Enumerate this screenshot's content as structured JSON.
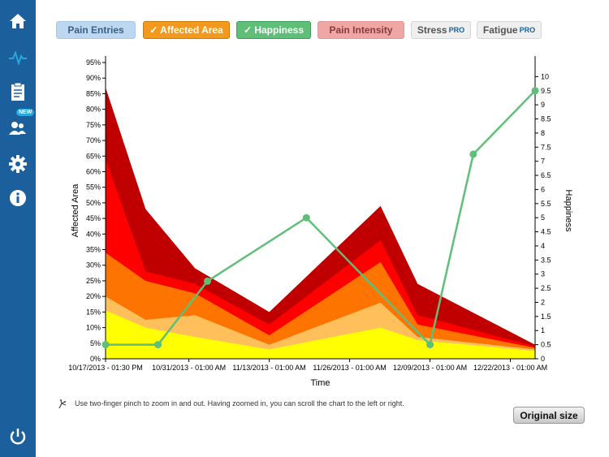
{
  "sidebar": {
    "items": [
      {
        "name": "home-icon"
      },
      {
        "name": "pulse-icon"
      },
      {
        "name": "clipboard-icon"
      },
      {
        "name": "people-icon",
        "badge": "NEW"
      },
      {
        "name": "gear-icon"
      },
      {
        "name": "info-icon"
      },
      {
        "name": "power-icon"
      }
    ]
  },
  "tabs": [
    {
      "label": "Pain Entries",
      "pro": "",
      "bg": "#bcd7ef",
      "border": "#a9c8e6",
      "color": "#3a5f88"
    },
    {
      "label": "✓ Affected Area",
      "pro": "",
      "bg": "#f39a1e",
      "border": "#c97a10",
      "color": "#ffffff"
    },
    {
      "label": "✓ Happiness",
      "pro": "",
      "bg": "#5fbf78",
      "border": "#3f9f58",
      "color": "#ffffff"
    },
    {
      "label": "Pain Intensity",
      "pro": "",
      "bg": "#eea7a5",
      "border": "#e49896",
      "color": "#8a3a3a"
    },
    {
      "label": "Stress",
      "pro": "PRO",
      "bg": "#efefef",
      "border": "#d6d6d6",
      "color": "#555555"
    },
    {
      "label": "Fatigue",
      "pro": "PRO",
      "bg": "#efefef",
      "border": "#d6d6d6",
      "color": "#555555"
    }
  ],
  "hint": {
    "text": "Use two-finger pinch to zoom in and out. Having zoomed in, you can scroll the chart to the left or right."
  },
  "original_size_label": "Original size",
  "chart_data": {
    "type": "area",
    "xlabel": "Time",
    "ylabel_left": "Affected Area",
    "ylabel_right": "Happiness",
    "x_ticks": [
      "10/17/2013 - 01:30 PM",
      "10/31/2013 - 01:00 AM",
      "11/13/2013 - 01:00 AM",
      "11/26/2013 - 01:00 AM",
      "12/09/2013 - 01:00 AM",
      "12/22/2013 - 01:00 AM"
    ],
    "x_points": [
      "10/17/2013",
      "10/24/2013",
      "11/01/2013",
      "11/13/2013",
      "12/01/2013",
      "12/07/2013",
      "12/26/2013"
    ],
    "y_left_ticks": [
      "0%",
      "5%",
      "10%",
      "15%",
      "20%",
      "25%",
      "30%",
      "35%",
      "40%",
      "45%",
      "50%",
      "55%",
      "60%",
      "65%",
      "70%",
      "75%",
      "80%",
      "85%",
      "90%",
      "95%"
    ],
    "y_left_range": [
      0,
      95
    ],
    "y_right_ticks": [
      "0",
      "0.5",
      "1",
      "1.5",
      "2",
      "2.5",
      "3",
      "3.5",
      "4",
      "4.5",
      "5",
      "5.5",
      "6",
      "6.5",
      "7",
      "7.5",
      "8",
      "8.5",
      "9",
      "9.5",
      "10"
    ],
    "y_right_range": [
      0,
      10.5
    ],
    "area_series": [
      {
        "color": "#c00000",
        "values": [
          87,
          48,
          29,
          15,
          49,
          24,
          4.5
        ]
      },
      {
        "color": "#fe0000",
        "values": [
          64,
          28,
          24,
          11,
          38,
          14,
          4
        ]
      },
      {
        "color": "#fe7400",
        "values": [
          34,
          25,
          21,
          7.5,
          31,
          11,
          3.5
        ]
      },
      {
        "color": "#ffbf5a",
        "values": [
          20,
          12.5,
          14,
          4.5,
          18,
          7,
          3
        ]
      },
      {
        "color": "#ffff00",
        "values": [
          15.5,
          10,
          7,
          3,
          10,
          6,
          2.5
        ]
      }
    ],
    "line_series": {
      "name": "Happiness",
      "color": "#5fbf78",
      "x_points": [
        "10/17/2013",
        "10/26/2013",
        "11/03/2013",
        "11/19/2013",
        "12/09/2013",
        "12/16/2013",
        "12/26/2013"
      ],
      "values": [
        0.5,
        0.5,
        2.75,
        5,
        0.5,
        7.25,
        9.5
      ]
    },
    "grid": false,
    "legend": "none"
  }
}
